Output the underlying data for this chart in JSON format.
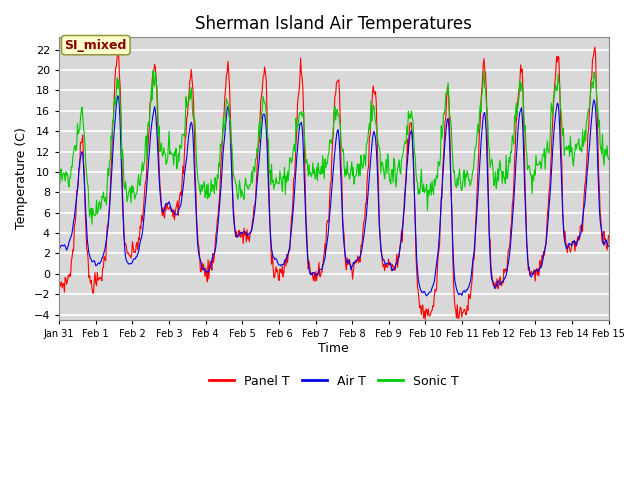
{
  "title": "Sherman Island Air Temperatures",
  "xlabel": "Time",
  "ylabel": "Temperature (C)",
  "ylim": [
    -4.5,
    23
  ],
  "yticks": [
    -4,
    -2,
    0,
    2,
    4,
    6,
    8,
    10,
    12,
    14,
    16,
    18,
    20,
    22
  ],
  "xtick_labels": [
    "Jan 31",
    "Feb 1",
    "Feb 2",
    "Feb 3",
    "Feb 4",
    "Feb 5",
    "Feb 6",
    "Feb 7",
    "Feb 8",
    "Feb 9",
    "Feb 10",
    "Feb 11",
    "Feb 12",
    "Feb 13",
    "Feb 14",
    "Feb 15"
  ],
  "annotation_text": "SI_mixed",
  "annotation_color": "#8B0000",
  "annotation_bg": "#FFFFCC",
  "line_colors": {
    "panel": "#FF0000",
    "air": "#0000EE",
    "sonic": "#00CC00"
  },
  "legend_labels": [
    "Panel T",
    "Air T",
    "Sonic T"
  ],
  "plot_bg": "#D8D8D8",
  "grid_color": "#FFFFFF",
  "title_fontsize": 12,
  "axis_fontsize": 9,
  "tick_fontsize": 8
}
